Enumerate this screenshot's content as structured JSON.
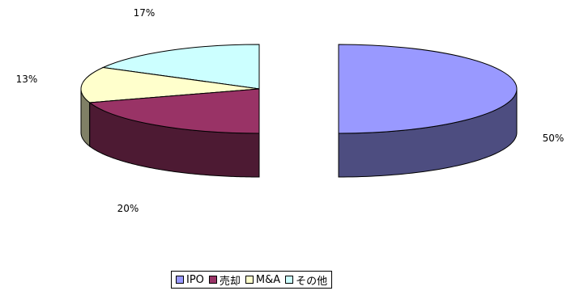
{
  "chart_data": {
    "type": "pie",
    "style": "3d-exploded",
    "categories": [
      "IPO",
      "売却",
      "M&A",
      "その他"
    ],
    "values": [
      50,
      20,
      13,
      17
    ],
    "data_labels": [
      "50%",
      "20%",
      "13%",
      "17%"
    ],
    "colors": {
      "top": [
        "#9999ff",
        "#993366",
        "#ffffcc",
        "#ccffff"
      ],
      "side": [
        "#4d4d80",
        "#4d1a33",
        "#808066",
        "#668080"
      ]
    },
    "legend": {
      "position": "bottom",
      "entries": [
        "IPO",
        "売却",
        "M&A",
        "その他"
      ]
    },
    "title": ""
  }
}
